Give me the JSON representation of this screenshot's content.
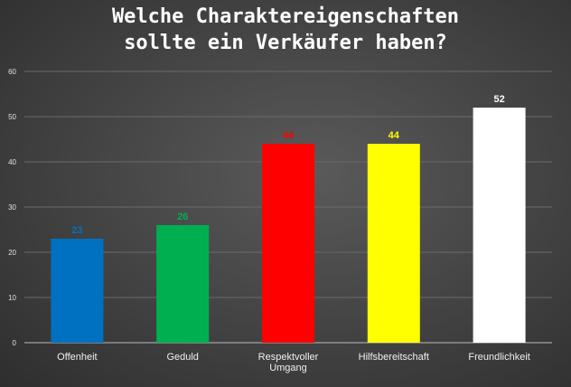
{
  "chart_data": {
    "type": "bar",
    "title_lines": [
      "Welche Charaktereigenschaften",
      "sollte ein Verkäufer haben?"
    ],
    "categories": [
      "Offenheit",
      "Geduld",
      "Respektvoller Umgang",
      "Hilfsbereitschaft",
      "Freundlichkeit"
    ],
    "category_label_lines": [
      [
        "Offenheit"
      ],
      [
        "Geduld"
      ],
      [
        "Respektvoller",
        "Umgang"
      ],
      [
        "Hilfsbereitschaft"
      ],
      [
        "Freundlichkeit"
      ]
    ],
    "values": [
      23,
      26,
      44,
      44,
      52
    ],
    "colors": [
      "#0070c0",
      "#00b050",
      "#ff0000",
      "#ffff00",
      "#ffffff"
    ],
    "ylim": [
      0,
      60
    ],
    "yticks": [
      0,
      10,
      20,
      30,
      40,
      50,
      60
    ],
    "xlabel": "",
    "ylabel": "",
    "grid": true,
    "legend": "none"
  }
}
